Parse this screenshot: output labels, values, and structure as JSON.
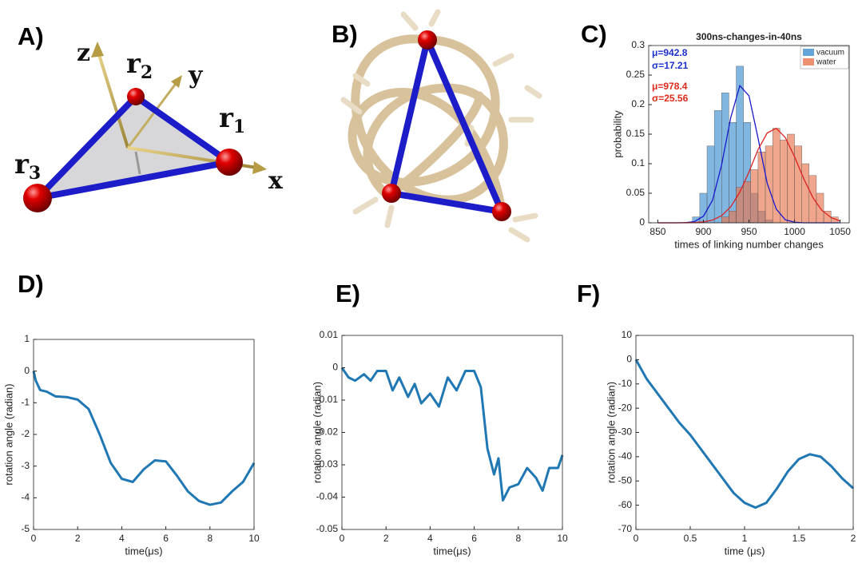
{
  "panel_labels": [
    "A)",
    "B)",
    "C)",
    "D)",
    "E)",
    "F)"
  ],
  "diagram": {
    "axis_labels": [
      "z",
      "y",
      "x"
    ],
    "points": [
      {
        "name": "r",
        "sub": "1"
      },
      {
        "name": "r",
        "sub": "2"
      },
      {
        "name": "r",
        "sub": "3"
      }
    ]
  },
  "chart_data": [
    {
      "type": "histogram",
      "title": "300ns-changes-in-40ns",
      "x_label": "times of linking number changes",
      "y_label": "probability",
      "xlim": [
        840,
        1060
      ],
      "xticks": [
        850,
        900,
        950,
        1000,
        1050
      ],
      "ylim": [
        0,
        0.3
      ],
      "yticks": [
        0,
        0.05,
        0.1,
        0.15,
        0.2,
        0.25,
        0.3
      ],
      "legend": "upper right",
      "series": [
        {
          "name": "vacuum",
          "color": "#3d8fcf",
          "bins": [
            888,
            896,
            904,
            912,
            920,
            928,
            936,
            944,
            952,
            960,
            968,
            976
          ],
          "values": [
            0.01,
            0.05,
            0.13,
            0.19,
            0.22,
            0.17,
            0.265,
            0.17,
            0.05,
            0.02,
            0.005
          ]
        },
        {
          "name": "water",
          "color": "#e8764f",
          "bins": [
            920,
            928,
            936,
            944,
            952,
            960,
            968,
            976,
            984,
            992,
            1000,
            1008,
            1016,
            1024,
            1032,
            1040,
            1048
          ],
          "values": [
            0.01,
            0.02,
            0.06,
            0.07,
            0.09,
            0.12,
            0.13,
            0.16,
            0.14,
            0.15,
            0.13,
            0.1,
            0.08,
            0.05,
            0.02,
            0.01
          ]
        }
      ],
      "fits": [
        {
          "color": "#1a1acc",
          "x": [
            850,
            860,
            870,
            880,
            890,
            900,
            910,
            920,
            930,
            940,
            950,
            960,
            970,
            980,
            990,
            1000,
            1010,
            1020,
            1030,
            1040,
            1050
          ],
          "values": [
            0,
            0,
            0,
            0.0003,
            0.002,
            0.011,
            0.038,
            0.098,
            0.178,
            0.232,
            0.215,
            0.143,
            0.067,
            0.023,
            0.005,
            0.001,
            0,
            0,
            0,
            0,
            0
          ]
        },
        {
          "color": "#dd2222",
          "x": [
            850,
            860,
            870,
            880,
            890,
            900,
            910,
            920,
            930,
            940,
            950,
            960,
            970,
            980,
            990,
            1000,
            1010,
            1020,
            1030,
            1040,
            1050
          ],
          "values": [
            0,
            0,
            0,
            0.0001,
            0.0004,
            0.0015,
            0.0045,
            0.012,
            0.027,
            0.052,
            0.086,
            0.124,
            0.152,
            0.16,
            0.144,
            0.112,
            0.075,
            0.043,
            0.021,
            0.009,
            0.003
          ]
        }
      ],
      "annotations": [
        {
          "text": "μ=942.8",
          "color": "#1a2fcc"
        },
        {
          "text": "σ=17.21",
          "color": "#1a2fcc"
        },
        {
          "text": "μ=978.4",
          "color": "#dd2a1a"
        },
        {
          "text": "σ=25.56",
          "color": "#dd2a1a"
        }
      ]
    },
    {
      "type": "line",
      "x_label": "time(μs)",
      "y_label": "rotation angle (radian)",
      "color": "#1f77b4",
      "xlim": [
        0,
        10
      ],
      "xticks": [
        0,
        2,
        4,
        6,
        8,
        10
      ],
      "ylim": [
        -5,
        1
      ],
      "yticks": [
        -5,
        -4,
        -3,
        -2,
        -1,
        0,
        1
      ],
      "x": [
        0,
        0.1,
        0.3,
        0.6,
        1,
        1.5,
        2,
        2.5,
        3,
        3.5,
        4,
        4.5,
        5,
        5.5,
        6,
        6.5,
        7,
        7.5,
        8,
        8.5,
        9,
        9.5,
        10
      ],
      "values": [
        0,
        -0.3,
        -0.6,
        -0.65,
        -0.8,
        -0.82,
        -0.9,
        -1.2,
        -2.0,
        -2.9,
        -3.4,
        -3.5,
        -3.1,
        -2.82,
        -2.85,
        -3.3,
        -3.8,
        -4.1,
        -4.22,
        -4.15,
        -3.8,
        -3.5,
        -2.9
      ]
    },
    {
      "type": "line",
      "x_label": "time(μs)",
      "y_label": "rotation angle (radian)",
      "color": "#1f77b4",
      "xlim": [
        0,
        10
      ],
      "xticks": [
        0,
        2,
        4,
        6,
        8,
        10
      ],
      "ylim": [
        -0.05,
        0.01
      ],
      "yticks": [
        -0.05,
        -0.04,
        -0.03,
        -0.02,
        -0.01,
        0,
        0.01
      ],
      "x": [
        0,
        0.3,
        0.6,
        1,
        1.3,
        1.6,
        2,
        2.3,
        2.6,
        3,
        3.3,
        3.6,
        4,
        4.4,
        4.8,
        5.2,
        5.6,
        6,
        6.3,
        6.6,
        6.9,
        7.1,
        7.3,
        7.6,
        8,
        8.4,
        8.8,
        9.1,
        9.4,
        9.8,
        10
      ],
      "values": [
        0,
        -0.003,
        -0.004,
        -0.002,
        -0.004,
        -0.001,
        -0.001,
        -0.007,
        -0.003,
        -0.009,
        -0.005,
        -0.011,
        -0.008,
        -0.012,
        -0.003,
        -0.007,
        -0.001,
        -0.001,
        -0.006,
        -0.025,
        -0.033,
        -0.028,
        -0.041,
        -0.037,
        -0.036,
        -0.031,
        -0.034,
        -0.038,
        -0.031,
        -0.031,
        -0.027
      ]
    },
    {
      "type": "line",
      "x_label": "time (μs)",
      "y_label": "rotation angle (radian)",
      "color": "#1f77b4",
      "xlim": [
        0,
        2
      ],
      "xticks": [
        0,
        0.5,
        1,
        1.5,
        2
      ],
      "ylim": [
        -70,
        10
      ],
      "yticks": [
        -70,
        -60,
        -50,
        -40,
        -30,
        -20,
        -10,
        0,
        10
      ],
      "x": [
        0,
        0.1,
        0.2,
        0.3,
        0.4,
        0.5,
        0.6,
        0.7,
        0.8,
        0.9,
        1.0,
        1.1,
        1.2,
        1.3,
        1.4,
        1.5,
        1.6,
        1.7,
        1.8,
        1.9,
        2.0
      ],
      "values": [
        0,
        -8,
        -14,
        -20,
        -26,
        -31,
        -37,
        -43,
        -49,
        -55,
        -59,
        -61,
        -59,
        -53,
        -46,
        -41,
        -39,
        -40,
        -44,
        -49,
        -53
      ]
    }
  ]
}
